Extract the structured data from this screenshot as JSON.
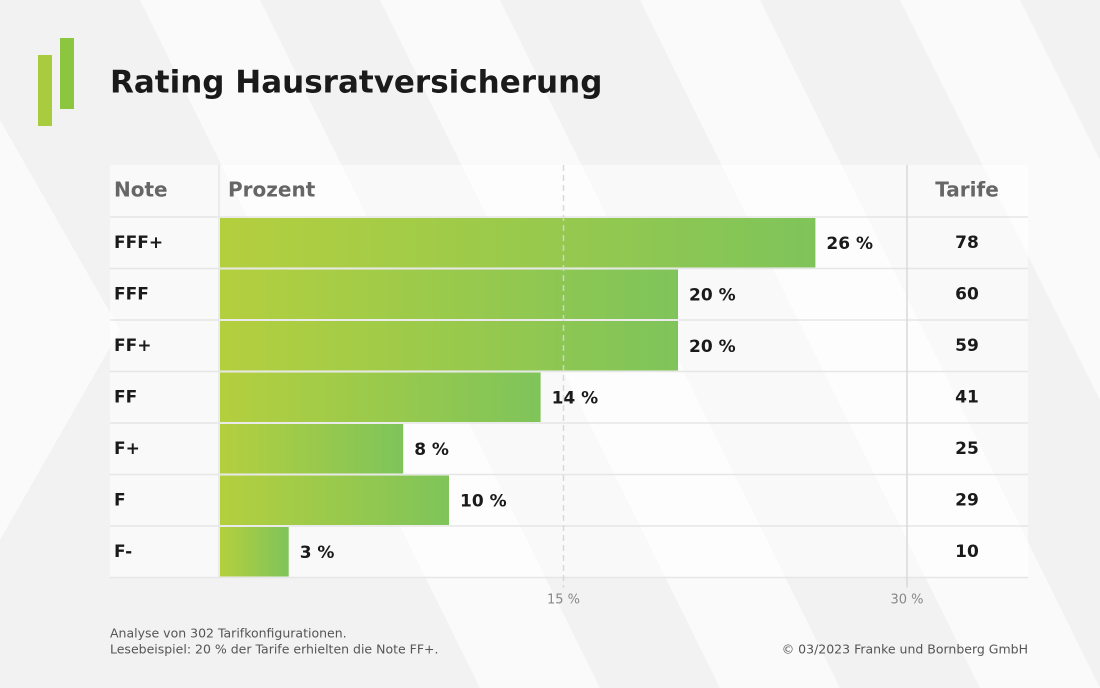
{
  "chart_data": {
    "type": "bar",
    "orientation": "horizontal",
    "title": "Rating Hausratversicherung",
    "headers": [
      "Note",
      "Prozent",
      "Tarife"
    ],
    "categories": [
      "FFF+",
      "FFF",
      "FF+",
      "FF",
      "F+",
      "F",
      "F-"
    ],
    "values": [
      26,
      20,
      20,
      14,
      8,
      10,
      3
    ],
    "value_labels": [
      "26 %",
      "20 %",
      "20 %",
      "14 %",
      "8 %",
      "10 %",
      "3 %"
    ],
    "tarife": [
      78,
      60,
      59,
      41,
      25,
      29,
      10
    ],
    "colors": [
      "#b4cf3e",
      "#7fc45a"
    ],
    "xlim": [
      0,
      30
    ],
    "xticks": [
      {
        "value": 15,
        "label": "15 %"
      },
      {
        "value": 30,
        "label": "30 %"
      }
    ],
    "notes": [
      "Analyse von 302 Tarifkonfigurationen.",
      "Lesebeispiel: 20 % der Tarife erhielten die Note FF+."
    ],
    "source": "© 03/2023 Franke und Bornberg GmbH"
  }
}
